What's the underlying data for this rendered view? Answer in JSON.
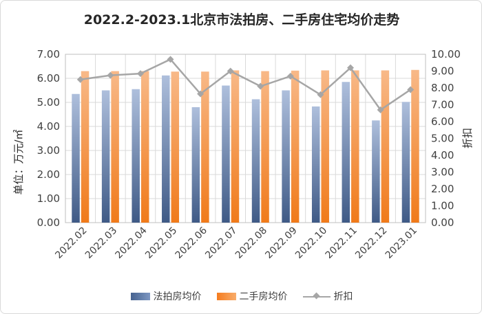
{
  "chart_data": {
    "type": "bar",
    "title": "2022.2-2023.1北京市法拍房、二手房住宅均价走势",
    "categories": [
      "2022.02",
      "2022.03",
      "2022.04",
      "2022.05",
      "2022.06",
      "2022.07",
      "2022.08",
      "2022.09",
      "2022.10",
      "2022.11",
      "2022.12",
      "2023.01"
    ],
    "ylabel": "单位：万元/㎡",
    "y2label": "折扣",
    "ylim": [
      0,
      7
    ],
    "y2lim": [
      0,
      10
    ],
    "yticks": [
      "0.00",
      "1.00",
      "2.00",
      "3.00",
      "4.00",
      "5.00",
      "6.00",
      "7.00"
    ],
    "y2ticks": [
      "0.00",
      "1.00",
      "2.00",
      "3.00",
      "4.00",
      "5.00",
      "6.00",
      "7.00",
      "8.00",
      "9.00",
      "10.00"
    ],
    "series": [
      {
        "name": "法拍房均价",
        "kind": "bar",
        "axis": "left",
        "color": "#5b77a8",
        "values": [
          5.35,
          5.5,
          5.55,
          6.12,
          4.8,
          5.7,
          5.13,
          5.5,
          4.83,
          5.85,
          4.25,
          5.02
        ]
      },
      {
        "name": "二手房均价",
        "kind": "bar",
        "axis": "left",
        "color": "#f58a2e",
        "values": [
          6.3,
          6.3,
          6.3,
          6.28,
          6.28,
          6.33,
          6.3,
          6.32,
          6.33,
          6.33,
          6.33,
          6.35
        ]
      },
      {
        "name": "折扣",
        "kind": "line",
        "axis": "right",
        "color": "#a6a6a6",
        "values": [
          8.5,
          8.75,
          8.85,
          9.7,
          7.65,
          9.0,
          8.1,
          8.7,
          7.6,
          9.2,
          6.7,
          7.9
        ]
      }
    ],
    "legend": "bottom",
    "grid": true
  }
}
